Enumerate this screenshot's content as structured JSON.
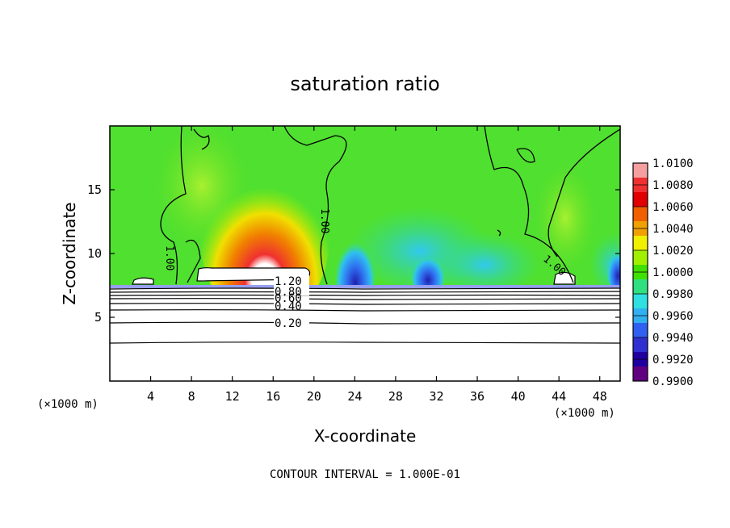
{
  "chart_data": {
    "type": "heatmap",
    "title": "saturation ratio",
    "xlabel": "X-coordinate",
    "ylabel": "Z-coordinate",
    "x_unit": "(×1000 m)",
    "x_unit_right": "(×1000 m)",
    "xlim": [
      0,
      50
    ],
    "ylim": [
      0,
      20
    ],
    "x_ticks": [
      4,
      8,
      12,
      16,
      20,
      24,
      28,
      32,
      36,
      40,
      44,
      48
    ],
    "y_ticks": [
      5,
      10,
      15
    ],
    "colorbar": {
      "labels": [
        "1.0100",
        "1.0080",
        "1.0060",
        "1.0040",
        "1.0020",
        "1.0000",
        "0.9980",
        "0.9960",
        "0.9940",
        "0.9920",
        "0.9900"
      ],
      "colors": [
        "#f4a0a0",
        "#f03030",
        "#e00000",
        "#f06000",
        "#f0a000",
        "#f0f000",
        "#a0f000",
        "#40e000",
        "#30e080",
        "#30e0e0",
        "#30b0f0",
        "#3060f0",
        "#3030d0",
        "#2000a0",
        "#600080"
      ]
    },
    "contour_labels": [
      "1.20",
      "0.80",
      "0.60",
      "0.40",
      "0.20",
      "1.00",
      "1.00",
      "1.00"
    ],
    "footer": "CONTOUR INTERVAL = 1.000E-01"
  }
}
